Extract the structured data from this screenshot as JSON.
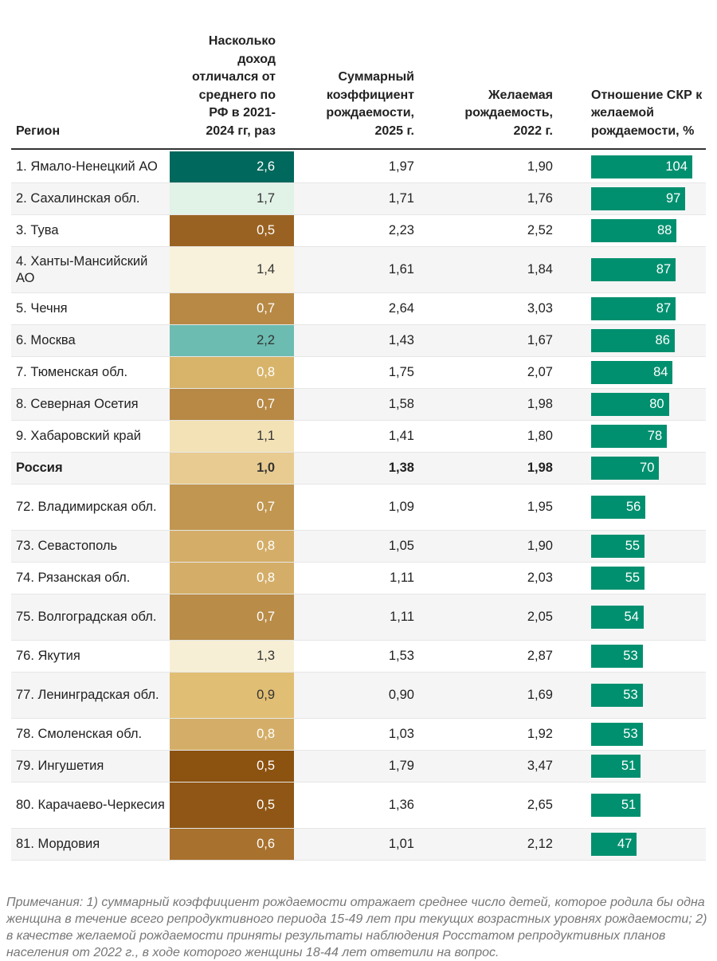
{
  "chart_data": {
    "type": "table",
    "headers": [
      "Регион",
      "Насколько доход отличался от среднего по РФ в 2021-2024 гг, раз",
      "Суммарный коэффициент рождаемости, 2025 г.",
      "Желаемая рождаемость, 2022 г.",
      "Отношение СКР к желаемой рождаемости, %"
    ],
    "rows": [
      {
        "region": "1. Ямало-Ненецкий АО",
        "income": "2,6",
        "skr": "1,97",
        "desired": "1,90",
        "ratio": 104,
        "color": "#00685c"
      },
      {
        "region": "2. Сахалинская обл.",
        "income": "1,7",
        "skr": "1,71",
        "desired": "1,76",
        "ratio": 97,
        "color": "#e1f2e7"
      },
      {
        "region": "3. Тува",
        "income": "0,5",
        "skr": "2,23",
        "desired": "2,52",
        "ratio": 88,
        "color": "#9a6222"
      },
      {
        "region": "4. Ханты-Мансийский АО",
        "income": "1,4",
        "skr": "1,61",
        "desired": "1,84",
        "ratio": 87,
        "color": "#f8f2dc"
      },
      {
        "region": "5. Чечня",
        "income": "0,7",
        "skr": "2,64",
        "desired": "3,03",
        "ratio": 87,
        "color": "#b78945"
      },
      {
        "region": "6. Москва",
        "income": "2,2",
        "skr": "1,43",
        "desired": "1,67",
        "ratio": 86,
        "color": "#6cbcb1"
      },
      {
        "region": "7. Тюменская обл.",
        "income": "0,8",
        "skr": "1,75",
        "desired": "2,07",
        "ratio": 84,
        "color": "#d8b46a"
      },
      {
        "region": "8. Северная Осетия",
        "income": "0,7",
        "skr": "1,58",
        "desired": "1,98",
        "ratio": 80,
        "color": "#b78945"
      },
      {
        "region": "9. Хабаровский край",
        "income": "1,1",
        "skr": "1,41",
        "desired": "1,80",
        "ratio": 78,
        "color": "#f2e2b6"
      },
      {
        "region": "Россия",
        "income": "1,0",
        "skr": "1,38",
        "desired": "1,98",
        "ratio": 70,
        "color": "#e8cb90",
        "bold": true
      },
      {
        "region": "72. Владимирская обл.",
        "income": "0,7",
        "skr": "1,09",
        "desired": "1,95",
        "ratio": 56,
        "color": "#c19650"
      },
      {
        "region": "73. Севастополь",
        "income": "0,8",
        "skr": "1,05",
        "desired": "1,90",
        "ratio": 55,
        "color": "#d4ae68"
      },
      {
        "region": "74. Рязанская обл.",
        "income": "0,8",
        "skr": "1,11",
        "desired": "2,03",
        "ratio": 55,
        "color": "#d4ae68"
      },
      {
        "region": "75. Волгоградская обл.",
        "income": "0,7",
        "skr": "1,11",
        "desired": "2,05",
        "ratio": 54,
        "color": "#b98c48"
      },
      {
        "region": "76. Якутия",
        "income": "1,3",
        "skr": "1,53",
        "desired": "2,87",
        "ratio": 53,
        "color": "#f7efd5"
      },
      {
        "region": "77. Ленинградская обл.",
        "income": "0,9",
        "skr": "0,90",
        "desired": "1,69",
        "ratio": 53,
        "color": "#e0be74"
      },
      {
        "region": "78. Смоленская обл.",
        "income": "0,8",
        "skr": "1,03",
        "desired": "1,92",
        "ratio": 53,
        "color": "#d4ae68"
      },
      {
        "region": "79. Ингушетия",
        "income": "0,5",
        "skr": "1,79",
        "desired": "3,47",
        "ratio": 51,
        "color": "#8c5210"
      },
      {
        "region": "80. Карачаево-Черкесия",
        "income": "0,5",
        "skr": "1,36",
        "desired": "2,65",
        "ratio": 51,
        "color": "#8f5615"
      },
      {
        "region": "81. Мордовия",
        "income": "0,6",
        "skr": "1,01",
        "desired": "2,12",
        "ratio": 47,
        "color": "#a8712e"
      }
    ]
  },
  "note": "Примечания: 1) суммарный коэффициент рождаемости отражает среднее число детей, которое родила бы одна женщина в течение всего репродуктивного периода 15-49 лет при текущих возрастных уровнях рождаемости; 2) в качестве желаемой рождаемости приняты результаты наблюдения Росстатом репродуктивных планов населения от 2022 г., в ходе которого женщины 18-44 лет ответили на вопрос."
}
